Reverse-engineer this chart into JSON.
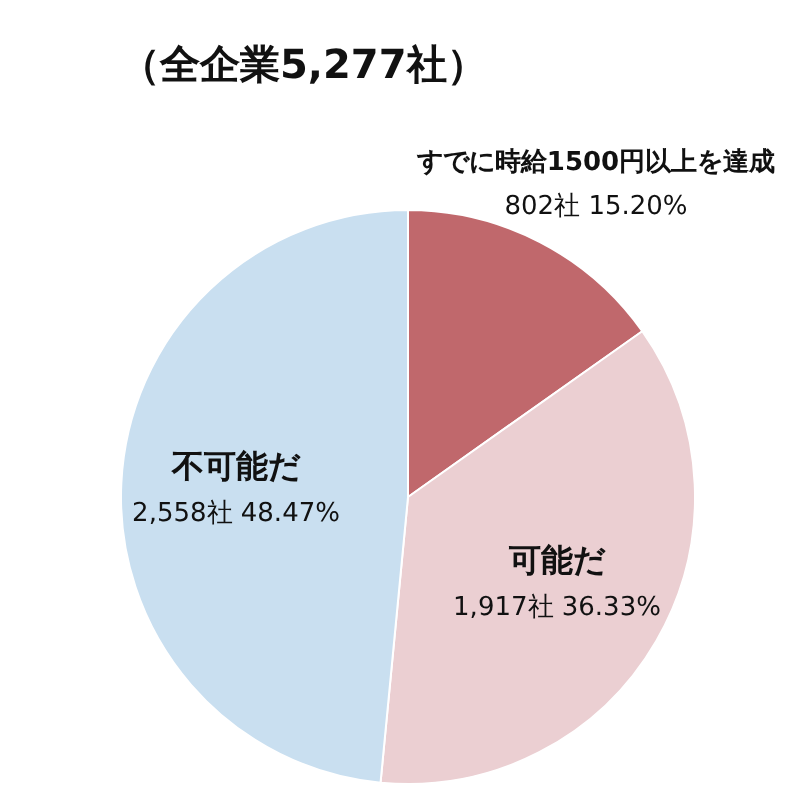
{
  "chart_data": {
    "type": "pie",
    "title": "（全企業5,277社）",
    "categories": [
      "すでに時給1500円以上を達成",
      "可能だ",
      "不可能だ"
    ],
    "values": [
      802,
      1917,
      2558
    ],
    "colors": [
      "#c0686c",
      "#ebcfd2",
      "#c9dff0"
    ],
    "value_labels": [
      "802社 15.20%",
      "1,917社 36.33%",
      "2,558社 48.47%"
    ],
    "legend": false
  }
}
